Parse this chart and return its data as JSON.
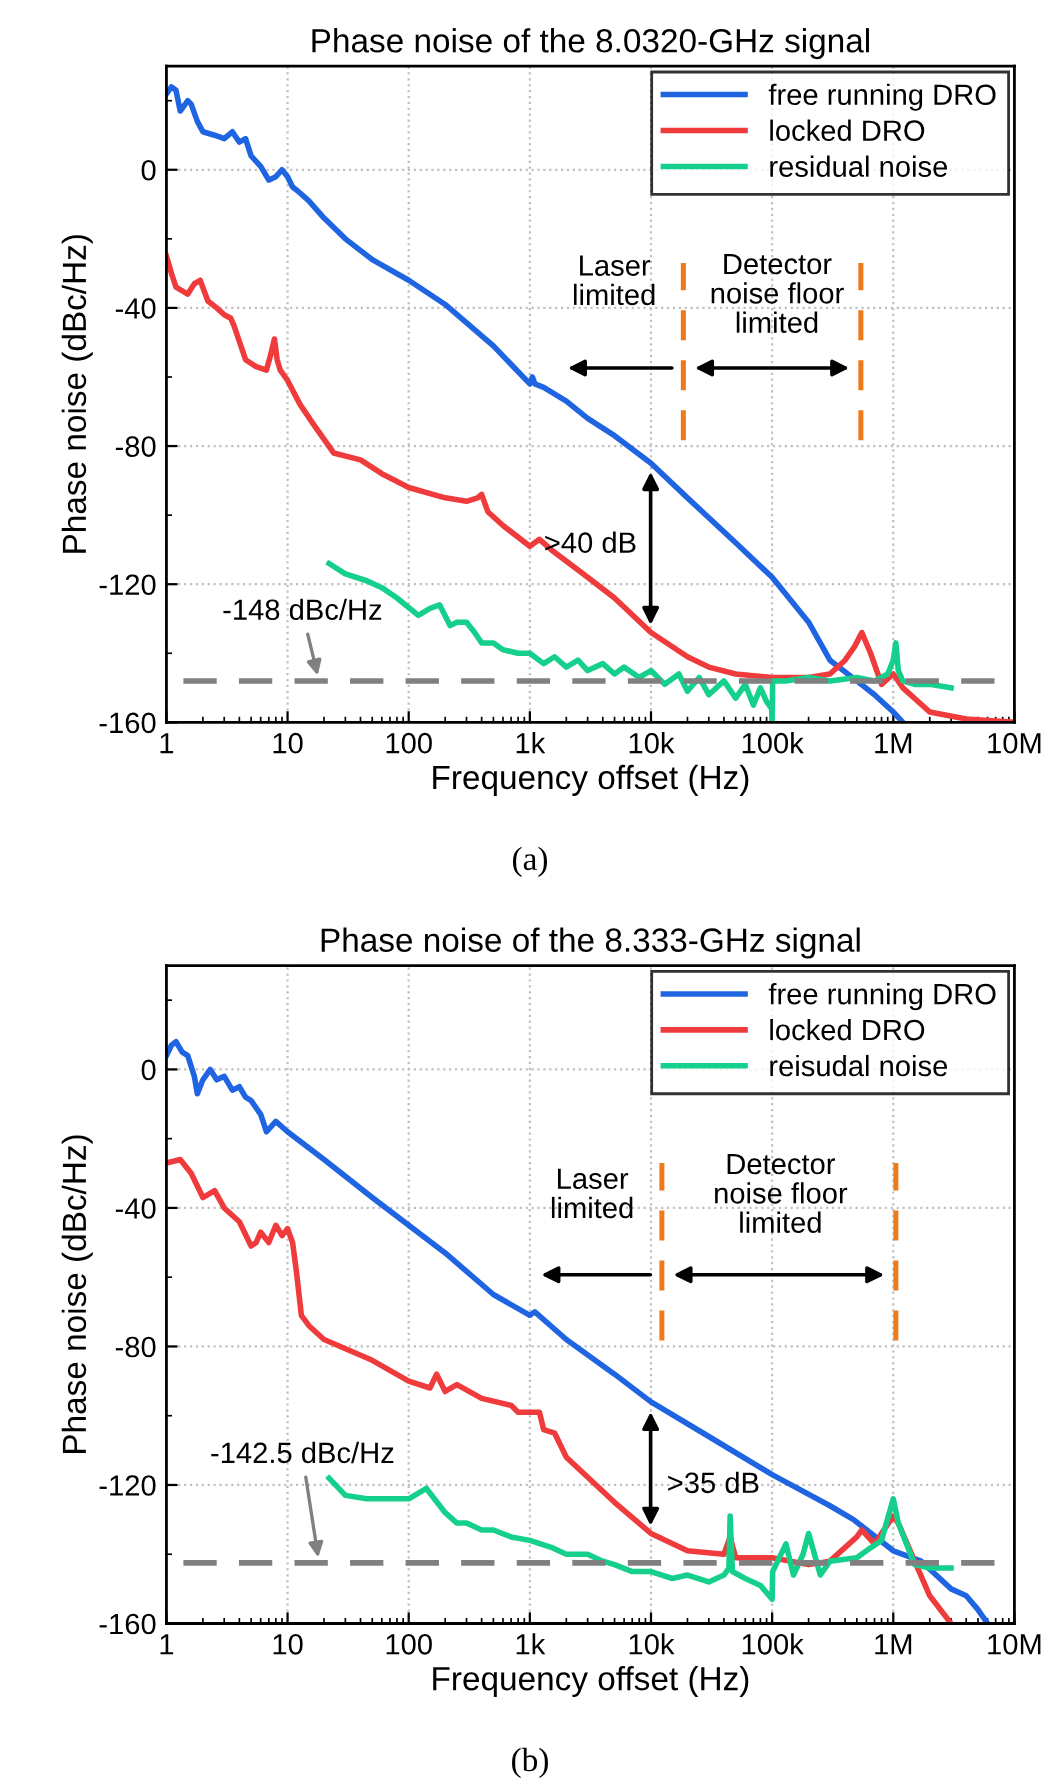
{
  "chart_data": [
    {
      "type": "line",
      "title": "Phase noise of the 8.0320-GHz signal",
      "xlabel": "Frequency offset (Hz)",
      "ylabel": "Phase noise (dBc/Hz)",
      "log": "x",
      "xlim": [
        1,
        10000000
      ],
      "xticks": [
        1,
        10,
        100,
        {
          "value": 1000,
          "label": "1k"
        },
        {
          "value": 10000,
          "label": "10k"
        },
        {
          "value": 100000,
          "label": "100k"
        },
        {
          "value": 1000000,
          "label": "1M"
        },
        {
          "value": 10000000,
          "label": "10M"
        }
      ],
      "ylim": [
        -160,
        30
      ],
      "yticks": [
        -160,
        -120,
        -80,
        -40,
        0
      ],
      "grid": true,
      "legend": "top right",
      "line_style": "solid",
      "series": [
        {
          "name": "free running DRO",
          "color": "#1f64e0",
          "x": [
            1,
            1.1,
            1.2,
            1.3,
            1.5,
            1.6,
            1.8,
            2,
            2.5,
            3,
            3.5,
            4,
            4.5,
            5,
            6,
            7,
            8,
            9,
            10,
            11,
            12,
            15,
            20,
            30,
            50,
            100,
            200,
            500,
            1000,
            1050,
            1100,
            1300,
            2000,
            3000,
            5000,
            10000,
            20000,
            50000,
            100000,
            200000,
            300000,
            500000,
            700000,
            1000000,
            1200000
          ],
          "values": [
            22,
            24,
            23,
            17,
            20,
            19,
            14,
            11,
            10,
            9,
            11,
            8,
            9,
            4,
            1,
            -3,
            -2,
            0,
            -2,
            -5,
            -6,
            -9,
            -14,
            -20,
            -26,
            -32,
            -39,
            -51,
            -62,
            -60,
            -62,
            -63,
            -67,
            -72,
            -77,
            -85,
            -95,
            -108,
            -118,
            -131,
            -142,
            -148,
            -152,
            -157,
            -160
          ]
        },
        {
          "name": "locked DRO",
          "color": "#ef3b3b",
          "x": [
            1,
            1.1,
            1.2,
            1.5,
            1.7,
            1.9,
            2.2,
            2.6,
            3,
            3.4,
            3.6,
            4.5,
            5.5,
            6.7,
            7.2,
            7.8,
            8.2,
            8.7,
            10,
            12.7,
            16.6,
            24,
            40,
            60,
            100,
            200,
            300,
            370,
            400,
            450,
            600,
            1000,
            1200,
            1500,
            3000,
            5000,
            10000,
            20000,
            30000,
            50000,
            100000,
            200000,
            300000,
            400000,
            480000,
            550000,
            650000,
            800000,
            1000000,
            1200000,
            2000000,
            4000000,
            10000000
          ],
          "values": [
            -25,
            -30,
            -34,
            -36,
            -33,
            -32,
            -38,
            -40,
            -42,
            -43,
            -45,
            -55,
            -57,
            -58,
            -54,
            -49,
            -55,
            -58,
            -61,
            -68,
            -74,
            -82,
            -84,
            -88,
            -92,
            -95,
            -96,
            -95,
            -94,
            -99,
            -103,
            -109,
            -107,
            -110,
            -118,
            -124,
            -134,
            -141,
            -144,
            -146,
            -147,
            -147,
            -146,
            -142,
            -138,
            -134,
            -140,
            -149,
            -146,
            -150,
            -157,
            -159,
            -160
          ]
        },
        {
          "name": "residual noise",
          "color": "#14d08c",
          "x": [
            22,
            30,
            45,
            60,
            80,
            120,
            150,
            180,
            220,
            250,
            300,
            350,
            400,
            500,
            600,
            800,
            1000,
            1300,
            1600,
            2000,
            2500,
            3000,
            4000,
            5000,
            6000,
            8000,
            10000,
            13000,
            17000,
            20000,
            25000,
            30000,
            40000,
            50000,
            60000,
            70000,
            80000,
            90000,
            99000,
            100000,
            101000,
            130000,
            200000,
            300000,
            500000,
            700000,
            900000,
            1000000,
            1050000,
            1100000,
            1200000,
            1500000,
            2000000,
            3000000
          ],
          "values": [
            -114,
            -117,
            -119,
            -121,
            -124,
            -129,
            -127,
            -126,
            -132,
            -131,
            -131,
            -134,
            -137,
            -137,
            -139,
            -140,
            -140,
            -143,
            -141,
            -144,
            -142,
            -145,
            -143,
            -146,
            -144,
            -147,
            -145,
            -149,
            -146,
            -151,
            -147,
            -152,
            -148,
            -153,
            -149,
            -155,
            -150,
            -154,
            -156,
            -160,
            -148,
            -148,
            -147,
            -148,
            -147,
            -148,
            -146,
            -142,
            -137,
            -145,
            -148,
            -149,
            -149,
            -150
          ]
        }
      ],
      "ref_lines": [
        {
          "axis": "y",
          "value": -148,
          "label": "-148 dBc/Hz",
          "color": "#808080",
          "line_style": "dashed"
        },
        {
          "axis": "x",
          "value": 18500,
          "label": null,
          "color": "#ee7a1a",
          "line_style": "dashed"
        },
        {
          "axis": "x",
          "value": 540000,
          "label": null,
          "color": "#ee7a1a",
          "line_style": "dashed"
        }
      ],
      "annotations": [
        "Laser\nlimited",
        "Detector\nnoise floor\nlimited",
        ">40 dB",
        "(a)"
      ]
    },
    {
      "type": "line",
      "title": "Phase noise of the 8.333-GHz signal",
      "xlabel": "Frequency offset (Hz)",
      "ylabel": "Phase noise (dBc/Hz)",
      "log": "x",
      "xlim": [
        1,
        10000000
      ],
      "xticks": [
        1,
        10,
        100,
        {
          "value": 1000,
          "label": "1k"
        },
        {
          "value": 10000,
          "label": "10k"
        },
        {
          "value": 100000,
          "label": "100k"
        },
        {
          "value": 1000000,
          "label": "1M"
        },
        {
          "value": 10000000,
          "label": "10M"
        }
      ],
      "ylim": [
        -160,
        30
      ],
      "yticks": [
        -160,
        -120,
        -80,
        -40,
        0
      ],
      "grid": true,
      "legend": "top right",
      "line_style": "solid",
      "series": [
        {
          "name": "free running DRO",
          "color": "#1f64e0",
          "x": [
            1,
            1.1,
            1.2,
            1.35,
            1.5,
            1.7,
            1.8,
            2,
            2.3,
            2.6,
            3,
            3.5,
            4,
            4.5,
            5,
            6,
            6.7,
            8,
            10,
            20,
            50,
            100,
            200,
            500,
            1000,
            1100,
            2000,
            5000,
            10000,
            30000,
            100000,
            300000,
            470000,
            1000000,
            1700000,
            3000000,
            4000000,
            5000000,
            6000000
          ],
          "values": [
            4,
            7,
            8,
            5,
            4,
            -2,
            -7,
            -3,
            0,
            -3,
            -2,
            -6,
            -5,
            -8,
            -9,
            -13,
            -18,
            -15,
            -18,
            -26,
            -37,
            -45,
            -53,
            -65,
            -71,
            -70,
            -78,
            -88,
            -96,
            -106,
            -117,
            -126,
            -130,
            -139,
            -142,
            -150,
            -152,
            -156,
            -160
          ]
        },
        {
          "name": "locked DRO",
          "color": "#ef3b3b",
          "x": [
            1,
            1.3,
            1.6,
            2,
            2.5,
            3,
            4,
            5,
            5.5,
            6,
            7,
            8,
            9,
            10,
            11,
            11.8,
            13,
            15,
            20,
            50,
            100,
            150,
            170,
            200,
            250,
            400,
            700,
            800,
            1200,
            1300,
            1600,
            2000,
            5000,
            10000,
            20000,
            40000,
            45000,
            50000,
            100000,
            200000,
            300000,
            500000,
            550000,
            700000,
            1000000,
            1100000,
            1500000,
            2000000,
            3000000
          ],
          "values": [
            -27,
            -26,
            -30,
            -37,
            -35,
            -40,
            -44,
            -51,
            -50,
            -47,
            -50,
            -45,
            -48,
            -46,
            -50,
            -58,
            -71,
            -74,
            -78,
            -84,
            -90,
            -92,
            -88,
            -93,
            -91,
            -95,
            -97,
            -99,
            -99,
            -104,
            -105,
            -112,
            -125,
            -134,
            -139,
            -140,
            -135,
            -141,
            -141,
            -143,
            -142,
            -135,
            -133,
            -137,
            -129,
            -131,
            -142,
            -152,
            -160
          ]
        },
        {
          "name": "reisudal noise",
          "color": "#14d08c",
          "x": [
            22,
            30,
            45,
            60,
            100,
            140,
            200,
            250,
            300,
            400,
            500,
            700,
            1000,
            1500,
            2000,
            3000,
            4000,
            5000,
            7000,
            10000,
            15000,
            20000,
            30000,
            40000,
            44000,
            45000,
            47000,
            60000,
            80000,
            100000,
            101000,
            130000,
            150000,
            180000,
            200000,
            250000,
            300000,
            500000,
            600000,
            800000,
            1000000,
            1100000,
            1500000,
            2000000,
            3000000
          ],
          "values": [
            -118,
            -123,
            -124,
            -124,
            -124,
            -121,
            -128,
            -131,
            -131,
            -133,
            -133,
            -135,
            -136,
            -138,
            -140,
            -140,
            -142,
            -143,
            -145,
            -145,
            -147,
            -146,
            -148,
            -146,
            -144,
            -129,
            -145,
            -147,
            -149,
            -153,
            -145,
            -137,
            -146,
            -140,
            -134,
            -146,
            -142,
            -141,
            -139,
            -136,
            -124,
            -131,
            -143,
            -144,
            -144
          ]
        }
      ],
      "ref_lines": [
        {
          "axis": "y",
          "value": -142.5,
          "label": "-142.5 dBc/Hz",
          "color": "#808080",
          "line_style": "dashed"
        },
        {
          "axis": "x",
          "value": 12300,
          "label": null,
          "color": "#ee7a1a",
          "line_style": "dashed"
        },
        {
          "axis": "x",
          "value": 1050000,
          "label": null,
          "color": "#ee7a1a",
          "line_style": "dashed"
        }
      ],
      "annotations": [
        "Laser\nlimited",
        "Detector\nnoise floor\nlimited",
        ">35 dB",
        "(b)"
      ]
    }
  ]
}
